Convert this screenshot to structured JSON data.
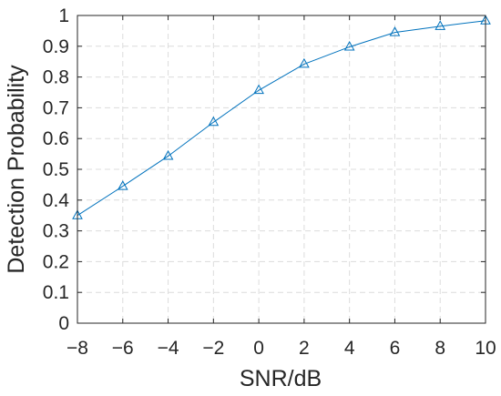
{
  "chart_data": {
    "type": "line",
    "xlabel": "SNR/dB",
    "ylabel": "Detection Probability",
    "xlim": [
      -8,
      10
    ],
    "ylim": [
      0,
      1
    ],
    "x_ticks": [
      -8,
      -6,
      -4,
      -2,
      0,
      2,
      4,
      6,
      8,
      10
    ],
    "x_tick_labels": [
      "−8",
      "−6",
      "−4",
      "−2",
      "0",
      "2",
      "4",
      "6",
      "8",
      "10"
    ],
    "y_ticks": [
      0,
      0.1,
      0.2,
      0.3,
      0.4,
      0.5,
      0.6,
      0.7,
      0.8,
      0.9,
      1
    ],
    "y_tick_labels": [
      "0",
      "0.1",
      "0.2",
      "0.3",
      "0.4",
      "0.5",
      "0.6",
      "0.7",
      "0.8",
      "0.9",
      "1"
    ],
    "grid": true,
    "series": [
      {
        "marker": "triangle",
        "color": "#0072BD",
        "x": [
          -8,
          -6,
          -4,
          -2,
          0,
          2,
          4,
          6,
          8,
          10
        ],
        "y": [
          0.35,
          0.445,
          0.543,
          0.653,
          0.757,
          0.842,
          0.898,
          0.945,
          0.965,
          0.983
        ]
      }
    ]
  }
}
